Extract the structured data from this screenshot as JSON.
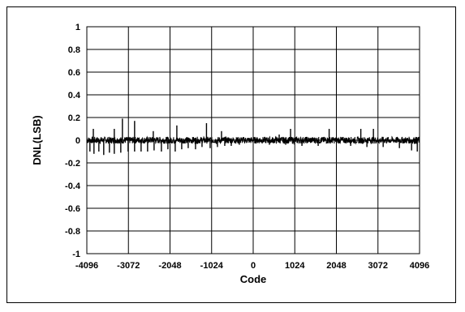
{
  "chart_data": {
    "type": "line",
    "title": "",
    "xlabel": "Code",
    "ylabel": "DNL(LSB)",
    "xlim": [
      -4096,
      4096
    ],
    "ylim": [
      -1,
      1
    ],
    "grid": true,
    "legend": "none",
    "x_ticks": [
      -4096,
      -3072,
      -2048,
      -1024,
      0,
      1024,
      2048,
      3072,
      4096
    ],
    "x_tick_labels": [
      "-4096",
      "-3072",
      "-2048",
      "-1024",
      "0",
      "1024",
      "2048",
      "3072",
      "4096"
    ],
    "y_ticks": [
      1,
      0.8,
      0.6,
      0.4,
      0.2,
      0,
      -0.2,
      -0.4,
      -0.6,
      -0.8,
      -1
    ],
    "y_tick_labels": [
      "1",
      "0.8",
      "0.6",
      "0.4",
      "0.2",
      "0",
      "-0.2",
      "-0.4",
      "-0.6",
      "-0.8",
      "-1"
    ],
    "series": [
      {
        "color": "#000000",
        "noise_band": [
          -0.03,
          0.03
        ],
        "spikes_positive": [
          {
            "x": -3936,
            "y": 0.1
          },
          {
            "x": -3420,
            "y": 0.1
          },
          {
            "x": -3220,
            "y": 0.19
          },
          {
            "x": -2920,
            "y": 0.17
          },
          {
            "x": -2460,
            "y": 0.08
          },
          {
            "x": -1880,
            "y": 0.13
          },
          {
            "x": -1150,
            "y": 0.15
          },
          {
            "x": -780,
            "y": 0.08
          },
          {
            "x": 640,
            "y": 0.05
          },
          {
            "x": 920,
            "y": 0.1
          },
          {
            "x": 1870,
            "y": 0.1
          },
          {
            "x": 2650,
            "y": 0.1
          },
          {
            "x": 2960,
            "y": 0.1
          }
        ],
        "spikes_negative": [
          {
            "x": -4020,
            "y": -0.1
          },
          {
            "x": -3920,
            "y": -0.12
          },
          {
            "x": -3800,
            "y": -0.1
          },
          {
            "x": -3680,
            "y": -0.13
          },
          {
            "x": -3540,
            "y": -0.11
          },
          {
            "x": -3420,
            "y": -0.12
          },
          {
            "x": -3260,
            "y": -0.11
          },
          {
            "x": -3080,
            "y": -0.1
          },
          {
            "x": -2920,
            "y": -0.1
          },
          {
            "x": -2760,
            "y": -0.1
          },
          {
            "x": -2600,
            "y": -0.1
          },
          {
            "x": -2440,
            "y": -0.09
          },
          {
            "x": -2260,
            "y": -0.1
          },
          {
            "x": -2100,
            "y": -0.08
          },
          {
            "x": -1920,
            "y": -0.1
          },
          {
            "x": -1760,
            "y": -0.08
          },
          {
            "x": -1600,
            "y": -0.07
          },
          {
            "x": -1420,
            "y": -0.08
          },
          {
            "x": -1260,
            "y": -0.06
          },
          {
            "x": -1060,
            "y": -0.07
          },
          {
            "x": -880,
            "y": -0.06
          },
          {
            "x": -700,
            "y": -0.05
          },
          {
            "x": -540,
            "y": -0.05
          },
          {
            "x": -340,
            "y": -0.04
          },
          {
            "x": 400,
            "y": -0.04
          },
          {
            "x": 800,
            "y": -0.04
          },
          {
            "x": 1200,
            "y": -0.05
          },
          {
            "x": 1600,
            "y": -0.05
          },
          {
            "x": 2400,
            "y": -0.05
          },
          {
            "x": 2800,
            "y": -0.06
          },
          {
            "x": 3200,
            "y": -0.06
          },
          {
            "x": 3600,
            "y": -0.07
          },
          {
            "x": 3900,
            "y": -0.09
          },
          {
            "x": 4040,
            "y": -0.1
          }
        ]
      }
    ]
  }
}
